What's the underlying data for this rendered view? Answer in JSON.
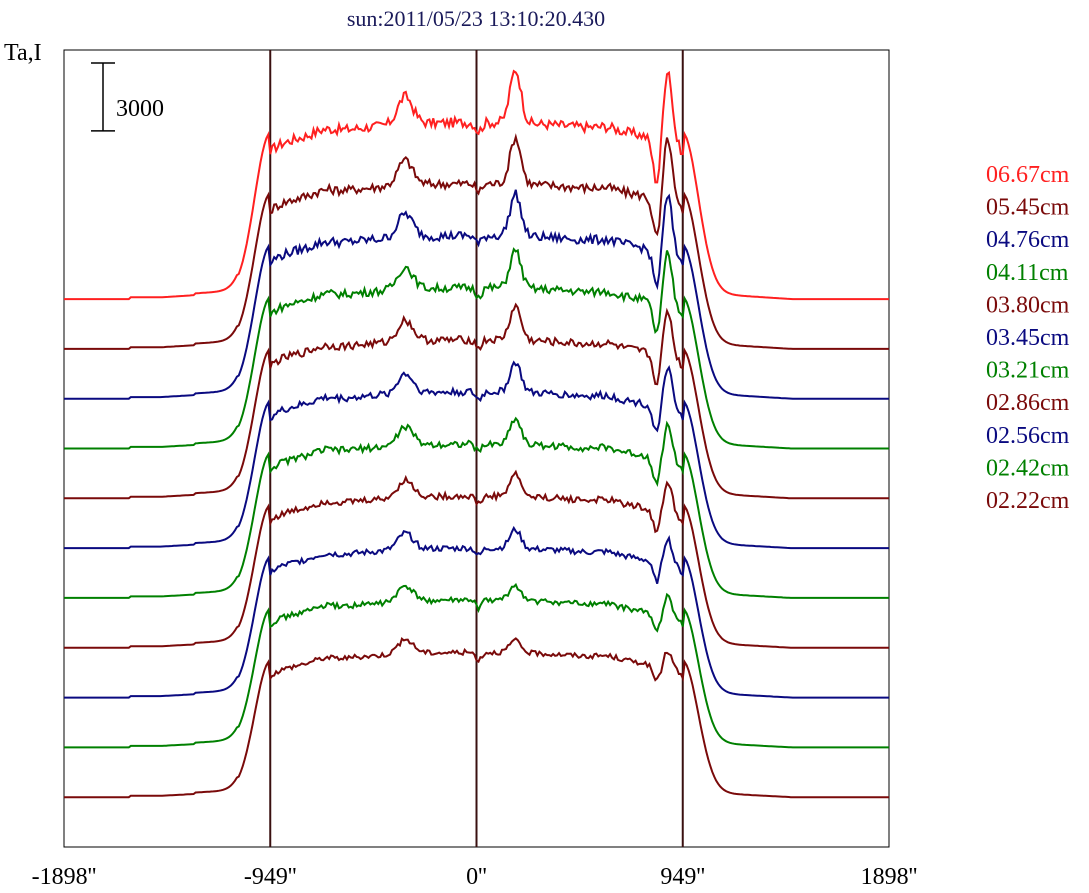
{
  "chart_data": {
    "type": "line",
    "title": "sun:2011/05/23 13:10:20.430",
    "ylabel": "Ta,I",
    "scale_bar_label": "3000",
    "scale_bar_value": 3000,
    "x_ticks": [
      {
        "value": -1898,
        "label": "-1898''"
      },
      {
        "value": -949,
        "label": "-949''"
      },
      {
        "value": 0,
        "label": "0''"
      },
      {
        "value": 949,
        "label": "949''"
      },
      {
        "value": 1898,
        "label": "1898''"
      }
    ],
    "xlim": [
      -1898,
      1898
    ],
    "vlines": [
      -949,
      0,
      949
    ],
    "legend_position": "right",
    "series": [
      {
        "name": "06.67cm",
        "color": "#ff2020",
        "base": 17000,
        "peak": 7800,
        "limb_dip": 2000,
        "noise": 220
      },
      {
        "name": "05.45cm",
        "color": "#7a0a0a",
        "base": 14800,
        "peak": 7300,
        "limb_dip": 1800,
        "noise": 200
      },
      {
        "name": "04.76cm",
        "color": "#0a0a80",
        "base": 12600,
        "peak": 7200,
        "limb_dip": 1600,
        "noise": 200
      },
      {
        "name": "04.11cm",
        "color": "#008000",
        "base": 10400,
        "peak": 7100,
        "limb_dip": 1400,
        "noise": 180
      },
      {
        "name": "03.80cm",
        "color": "#7a0a0a",
        "base": 8200,
        "peak": 7000,
        "limb_dip": 1300,
        "noise": 170
      },
      {
        "name": "03.45cm",
        "color": "#0a0a80",
        "base": 6000,
        "peak": 6900,
        "limb_dip": 1200,
        "noise": 160
      },
      {
        "name": "03.21cm",
        "color": "#008000",
        "base": 3800,
        "peak": 6800,
        "limb_dip": 1100,
        "noise": 150
      },
      {
        "name": "02.86cm",
        "color": "#7a0a0a",
        "base": 1600,
        "peak": 6700,
        "limb_dip": 1000,
        "noise": 140
      },
      {
        "name": "02.56cm",
        "color": "#0a0a80",
        "base": -600,
        "peak": 6600,
        "limb_dip": 900,
        "noise": 130
      },
      {
        "name": "02.42cm",
        "color": "#008000",
        "base": -2800,
        "peak": 6500,
        "limb_dip": 800,
        "noise": 120
      },
      {
        "name": "02.22cm",
        "color": "#7a0a0a",
        "base": -5000,
        "peak": 6400,
        "limb_dip": 700,
        "noise": 110
      }
    ],
    "ylim": [
      -7200,
      28000
    ]
  }
}
